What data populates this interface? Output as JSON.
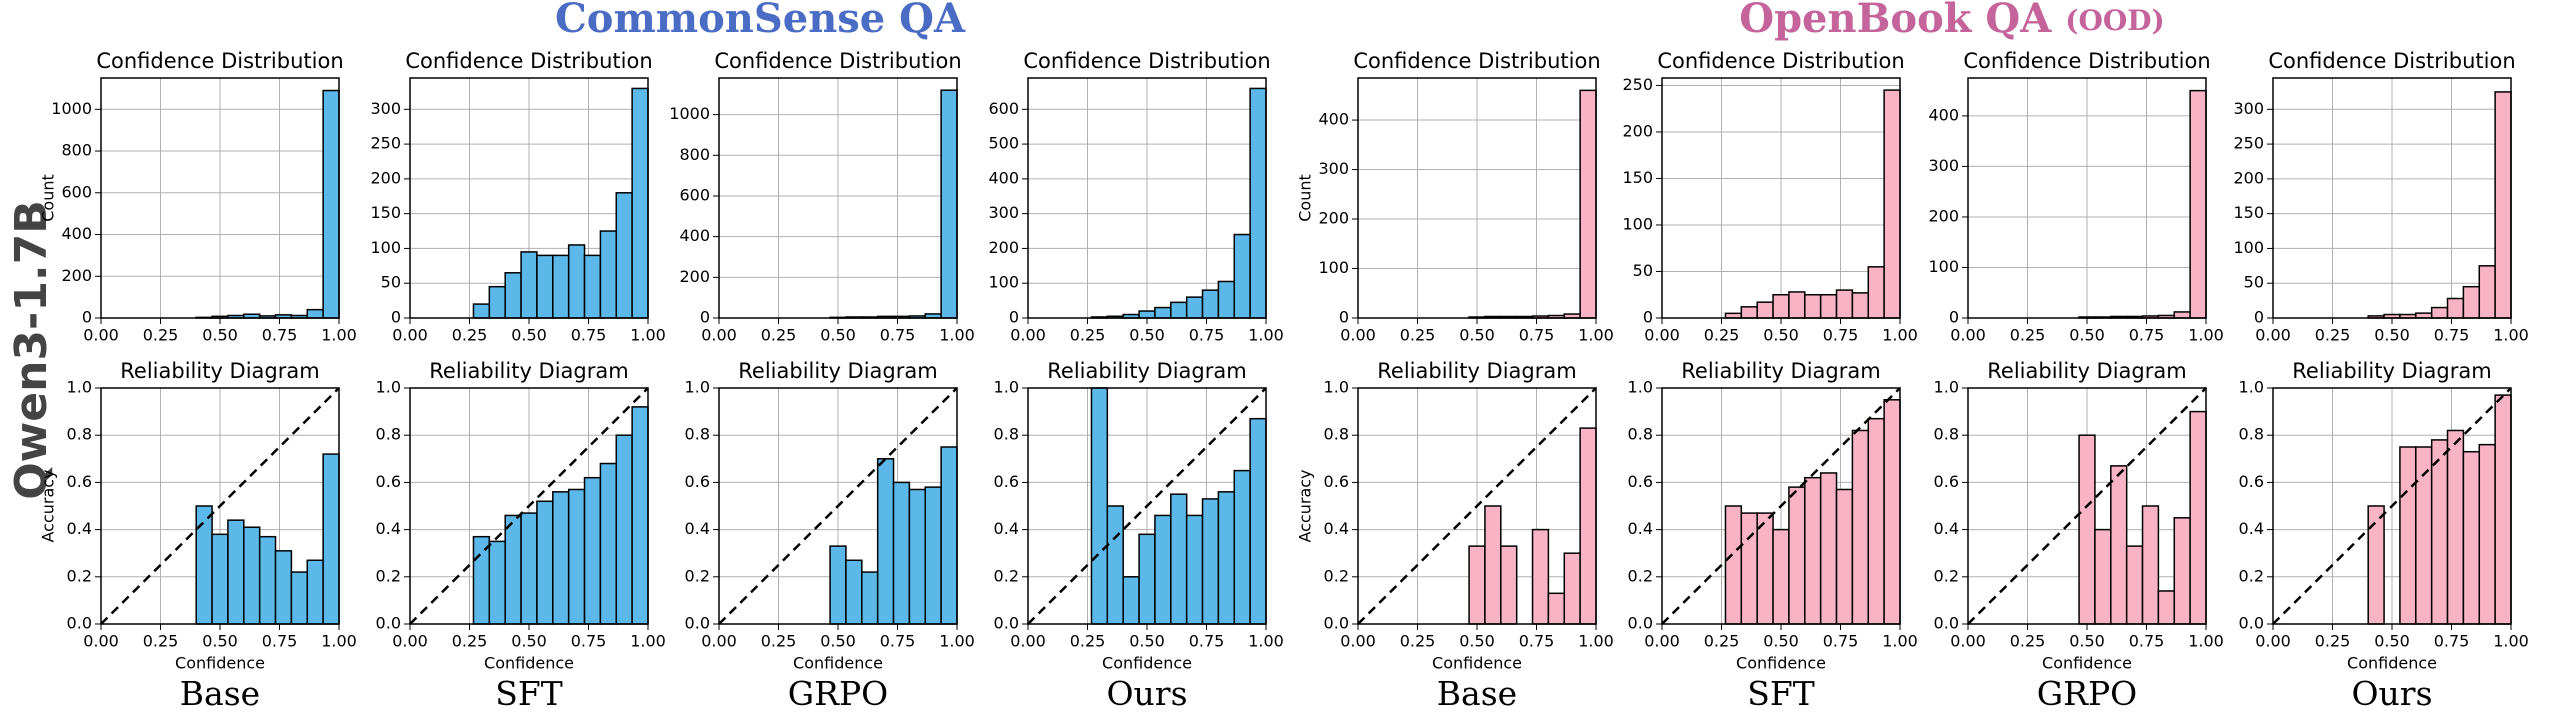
{
  "figure": {
    "row_label": "Qwen3-1.7B",
    "groups": [
      {
        "title": "CommonSense QA"
      },
      {
        "title": "OpenBook QA",
        "note": "(OOD)"
      }
    ],
    "columns": [
      "Base",
      "SFT",
      "GRPO",
      "Ours",
      "Base",
      "SFT",
      "GRPO",
      "Ours"
    ]
  },
  "chart_data": [
    {
      "type": "histogram",
      "title": "Confidence Distribution",
      "ylabel": "Count",
      "color": "#5cb8e8",
      "grid": true,
      "bins": [
        0,
        0.0667,
        0.1333,
        0.2,
        0.2667,
        0.3333,
        0.4,
        0.4667,
        0.5333,
        0.6,
        0.6667,
        0.7333,
        0.8,
        0.8667,
        0.9333,
        1
      ],
      "values": [
        0,
        0,
        0,
        0,
        0,
        0,
        3,
        8,
        12,
        18,
        10,
        15,
        12,
        40,
        1090
      ],
      "xlim": [
        0,
        1
      ],
      "ylim": [
        0,
        1150
      ],
      "xticks": [
        {
          "value": 0,
          "label": "0.00"
        },
        0.25,
        {
          "value": 0.5,
          "label": "0.50"
        },
        0.75,
        {
          "value": 1,
          "label": "1.00"
        }
      ],
      "yticks": [
        0,
        200,
        400,
        600,
        800,
        1000
      ]
    },
    {
      "type": "histogram",
      "title": "Reliability Diagram",
      "xlabel": "Confidence",
      "ylabel": "Accuracy",
      "color": "#5cb8e8",
      "grid": true,
      "diagonal": true,
      "bins": [
        0,
        0.0667,
        0.1333,
        0.2,
        0.2667,
        0.3333,
        0.4,
        0.4667,
        0.5333,
        0.6,
        0.6667,
        0.7333,
        0.8,
        0.8667,
        0.9333,
        1
      ],
      "values": [
        null,
        null,
        null,
        null,
        null,
        null,
        0.5,
        0.38,
        0.44,
        0.41,
        0.37,
        0.31,
        0.22,
        0.27,
        0.72
      ],
      "xlim": [
        0,
        1
      ],
      "ylim": [
        0,
        1
      ],
      "xticks": [
        {
          "value": 0,
          "label": "0.00"
        },
        0.25,
        {
          "value": 0.5,
          "label": "0.50"
        },
        0.75,
        {
          "value": 1,
          "label": "1.00"
        }
      ],
      "yticks": [
        {
          "value": 0,
          "label": "0.0"
        },
        0.2,
        0.4,
        0.6,
        0.8,
        {
          "value": 1,
          "label": "1.0"
        }
      ]
    },
    {
      "type": "histogram",
      "title": "Confidence Distribution",
      "color": "#5cb8e8",
      "grid": true,
      "bins": [
        0,
        0.0667,
        0.1333,
        0.2,
        0.2667,
        0.3333,
        0.4,
        0.4667,
        0.5333,
        0.6,
        0.6667,
        0.7333,
        0.8,
        0.8667,
        0.9333,
        1
      ],
      "values": [
        0,
        0,
        0,
        0,
        20,
        45,
        65,
        95,
        90,
        90,
        105,
        90,
        125,
        180,
        330
      ],
      "xlim": [
        0,
        1
      ],
      "ylim": [
        0,
        345
      ],
      "xticks": [
        {
          "value": 0,
          "label": "0.00"
        },
        0.25,
        {
          "value": 0.5,
          "label": "0.50"
        },
        0.75,
        {
          "value": 1,
          "label": "1.00"
        }
      ],
      "yticks": [
        0,
        50,
        100,
        150,
        200,
        250,
        300
      ]
    },
    {
      "type": "histogram",
      "title": "Reliability Diagram",
      "xlabel": "Confidence",
      "color": "#5cb8e8",
      "grid": true,
      "diagonal": true,
      "bins": [
        0,
        0.0667,
        0.1333,
        0.2,
        0.2667,
        0.3333,
        0.4,
        0.4667,
        0.5333,
        0.6,
        0.6667,
        0.7333,
        0.8,
        0.8667,
        0.9333,
        1
      ],
      "values": [
        null,
        null,
        null,
        null,
        0.37,
        0.35,
        0.46,
        0.47,
        0.52,
        0.56,
        0.57,
        0.62,
        0.68,
        0.8,
        0.92
      ],
      "xlim": [
        0,
        1
      ],
      "ylim": [
        0,
        1
      ],
      "xticks": [
        {
          "value": 0,
          "label": "0.00"
        },
        0.25,
        {
          "value": 0.5,
          "label": "0.50"
        },
        0.75,
        {
          "value": 1,
          "label": "1.00"
        }
      ],
      "yticks": [
        {
          "value": 0,
          "label": "0.0"
        },
        0.2,
        0.4,
        0.6,
        0.8,
        {
          "value": 1,
          "label": "1.0"
        }
      ]
    },
    {
      "type": "histogram",
      "title": "Confidence Distribution",
      "color": "#5cb8e8",
      "grid": true,
      "bins": [
        0,
        0.0667,
        0.1333,
        0.2,
        0.2667,
        0.3333,
        0.4,
        0.4667,
        0.5333,
        0.6,
        0.6667,
        0.7333,
        0.8,
        0.8667,
        0.9333,
        1
      ],
      "values": [
        0,
        0,
        0,
        0,
        0,
        0,
        0,
        3,
        5,
        5,
        8,
        8,
        10,
        20,
        1120
      ],
      "xlim": [
        0,
        1
      ],
      "ylim": [
        0,
        1180
      ],
      "xticks": [
        {
          "value": 0,
          "label": "0.00"
        },
        0.25,
        {
          "value": 0.5,
          "label": "0.50"
        },
        0.75,
        {
          "value": 1,
          "label": "1.00"
        }
      ],
      "yticks": [
        0,
        200,
        400,
        600,
        800,
        1000
      ]
    },
    {
      "type": "histogram",
      "title": "Reliability Diagram",
      "xlabel": "Confidence",
      "color": "#5cb8e8",
      "grid": true,
      "diagonal": true,
      "bins": [
        0,
        0.0667,
        0.1333,
        0.2,
        0.2667,
        0.3333,
        0.4,
        0.4667,
        0.5333,
        0.6,
        0.6667,
        0.7333,
        0.8,
        0.8667,
        0.9333,
        1
      ],
      "values": [
        null,
        null,
        null,
        null,
        null,
        null,
        null,
        0.33,
        0.27,
        0.22,
        0.7,
        0.6,
        0.57,
        0.58,
        0.75
      ],
      "xlim": [
        0,
        1
      ],
      "ylim": [
        0,
        1
      ],
      "xticks": [
        {
          "value": 0,
          "label": "0.00"
        },
        0.25,
        {
          "value": 0.5,
          "label": "0.50"
        },
        0.75,
        {
          "value": 1,
          "label": "1.00"
        }
      ],
      "yticks": [
        {
          "value": 0,
          "label": "0.0"
        },
        0.2,
        0.4,
        0.6,
        0.8,
        {
          "value": 1,
          "label": "1.0"
        }
      ]
    },
    {
      "type": "histogram",
      "title": "Confidence Distribution",
      "color": "#5cb8e8",
      "grid": true,
      "bins": [
        0,
        0.0667,
        0.1333,
        0.2,
        0.2667,
        0.3333,
        0.4,
        0.4667,
        0.5333,
        0.6,
        0.6667,
        0.7333,
        0.8,
        0.8667,
        0.9333,
        1
      ],
      "values": [
        0,
        0,
        0,
        0,
        3,
        5,
        10,
        20,
        30,
        45,
        60,
        80,
        105,
        240,
        660
      ],
      "xlim": [
        0,
        1
      ],
      "ylim": [
        0,
        690
      ],
      "xticks": [
        {
          "value": 0,
          "label": "0.00"
        },
        0.25,
        {
          "value": 0.5,
          "label": "0.50"
        },
        0.75,
        {
          "value": 1,
          "label": "1.00"
        }
      ],
      "yticks": [
        0,
        100,
        200,
        300,
        400,
        500,
        600
      ]
    },
    {
      "type": "histogram",
      "title": "Reliability Diagram",
      "xlabel": "Confidence",
      "color": "#5cb8e8",
      "grid": true,
      "diagonal": true,
      "bins": [
        0,
        0.0667,
        0.1333,
        0.2,
        0.2667,
        0.3333,
        0.4,
        0.4667,
        0.5333,
        0.6,
        0.6667,
        0.7333,
        0.8,
        0.8667,
        0.9333,
        1
      ],
      "values": [
        null,
        null,
        null,
        null,
        1,
        0.5,
        0.2,
        0.38,
        0.46,
        0.55,
        0.46,
        0.53,
        0.56,
        0.65,
        0.87
      ],
      "xlim": [
        0,
        1
      ],
      "ylim": [
        0,
        1
      ],
      "xticks": [
        {
          "value": 0,
          "label": "0.00"
        },
        0.25,
        {
          "value": 0.5,
          "label": "0.50"
        },
        0.75,
        {
          "value": 1,
          "label": "1.00"
        }
      ],
      "yticks": [
        {
          "value": 0,
          "label": "0.0"
        },
        0.2,
        0.4,
        0.6,
        0.8,
        {
          "value": 1,
          "label": "1.0"
        }
      ]
    },
    {
      "type": "histogram",
      "title": "Confidence Distribution",
      "ylabel": "Count",
      "color": "#f8b3c4",
      "grid": true,
      "bins": [
        0,
        0.0667,
        0.1333,
        0.2,
        0.2667,
        0.3333,
        0.4,
        0.4667,
        0.5333,
        0.6,
        0.6667,
        0.7333,
        0.8,
        0.8667,
        0.9333,
        1
      ],
      "values": [
        0,
        0,
        0,
        0,
        0,
        0,
        0,
        2,
        3,
        3,
        3,
        4,
        5,
        8,
        460
      ],
      "xlim": [
        0,
        1
      ],
      "ylim": [
        0,
        485
      ],
      "xticks": [
        {
          "value": 0,
          "label": "0.00"
        },
        0.25,
        {
          "value": 0.5,
          "label": "0.50"
        },
        0.75,
        {
          "value": 1,
          "label": "1.00"
        }
      ],
      "yticks": [
        0,
        100,
        200,
        300,
        400
      ]
    },
    {
      "type": "histogram",
      "title": "Reliability Diagram",
      "xlabel": "Confidence",
      "ylabel": "Accuracy",
      "color": "#f8b3c4",
      "grid": true,
      "diagonal": true,
      "bins": [
        0,
        0.0667,
        0.1333,
        0.2,
        0.2667,
        0.3333,
        0.4,
        0.4667,
        0.5333,
        0.6,
        0.6667,
        0.7333,
        0.8,
        0.8667,
        0.9333,
        1
      ],
      "values": [
        null,
        null,
        null,
        null,
        null,
        null,
        null,
        0.33,
        0.5,
        0.33,
        null,
        0.4,
        0.13,
        0.3,
        0.83
      ],
      "xlim": [
        0,
        1
      ],
      "ylim": [
        0,
        1
      ],
      "xticks": [
        {
          "value": 0,
          "label": "0.00"
        },
        0.25,
        {
          "value": 0.5,
          "label": "0.50"
        },
        0.75,
        {
          "value": 1,
          "label": "1.00"
        }
      ],
      "yticks": [
        {
          "value": 0,
          "label": "0.0"
        },
        0.2,
        0.4,
        0.6,
        0.8,
        {
          "value": 1,
          "label": "1.0"
        }
      ]
    },
    {
      "type": "histogram",
      "title": "Confidence Distribution",
      "color": "#f8b3c4",
      "grid": true,
      "bins": [
        0,
        0.0667,
        0.1333,
        0.2,
        0.2667,
        0.3333,
        0.4,
        0.4667,
        0.5333,
        0.6,
        0.6667,
        0.7333,
        0.8,
        0.8667,
        0.9333,
        1
      ],
      "values": [
        0,
        0,
        0,
        0,
        5,
        12,
        17,
        25,
        28,
        25,
        25,
        30,
        27,
        55,
        245
      ],
      "xlim": [
        0,
        1
      ],
      "ylim": [
        0,
        258
      ],
      "xticks": [
        {
          "value": 0,
          "label": "0.00"
        },
        0.25,
        {
          "value": 0.5,
          "label": "0.50"
        },
        0.75,
        {
          "value": 1,
          "label": "1.00"
        }
      ],
      "yticks": [
        0,
        50,
        100,
        150,
        200,
        250
      ]
    },
    {
      "type": "histogram",
      "title": "Reliability Diagram",
      "xlabel": "Confidence",
      "color": "#f8b3c4",
      "grid": true,
      "diagonal": true,
      "bins": [
        0,
        0.0667,
        0.1333,
        0.2,
        0.2667,
        0.3333,
        0.4,
        0.4667,
        0.5333,
        0.6,
        0.6667,
        0.7333,
        0.8,
        0.8667,
        0.9333,
        1
      ],
      "values": [
        null,
        null,
        null,
        null,
        0.5,
        0.47,
        0.47,
        0.4,
        0.58,
        0.62,
        0.64,
        0.57,
        0.82,
        0.87,
        0.95
      ],
      "xlim": [
        0,
        1
      ],
      "ylim": [
        0,
        1
      ],
      "xticks": [
        {
          "value": 0,
          "label": "0.00"
        },
        0.25,
        {
          "value": 0.5,
          "label": "0.50"
        },
        0.75,
        {
          "value": 1,
          "label": "1.00"
        }
      ],
      "yticks": [
        {
          "value": 0,
          "label": "0.0"
        },
        0.2,
        0.4,
        0.6,
        0.8,
        {
          "value": 1,
          "label": "1.0"
        }
      ]
    },
    {
      "type": "histogram",
      "title": "Confidence Distribution",
      "color": "#f8b3c4",
      "grid": true,
      "bins": [
        0,
        0.0667,
        0.1333,
        0.2,
        0.2667,
        0.3333,
        0.4,
        0.4667,
        0.5333,
        0.6,
        0.6667,
        0.7333,
        0.8,
        0.8667,
        0.9333,
        1
      ],
      "values": [
        0,
        0,
        0,
        0,
        0,
        0,
        0,
        2,
        2,
        3,
        3,
        4,
        5,
        12,
        450
      ],
      "xlim": [
        0,
        1
      ],
      "ylim": [
        0,
        475
      ],
      "xticks": [
        {
          "value": 0,
          "label": "0.00"
        },
        0.25,
        {
          "value": 0.5,
          "label": "0.50"
        },
        0.75,
        {
          "value": 1,
          "label": "1.00"
        }
      ],
      "yticks": [
        0,
        100,
        200,
        300,
        400
      ]
    },
    {
      "type": "histogram",
      "title": "Reliability Diagram",
      "xlabel": "Confidence",
      "color": "#f8b3c4",
      "grid": true,
      "diagonal": true,
      "bins": [
        0,
        0.0667,
        0.1333,
        0.2,
        0.2667,
        0.3333,
        0.4,
        0.4667,
        0.5333,
        0.6,
        0.6667,
        0.7333,
        0.8,
        0.8667,
        0.9333,
        1
      ],
      "values": [
        null,
        null,
        null,
        null,
        null,
        null,
        null,
        0.8,
        0.4,
        0.67,
        0.33,
        0.5,
        0.14,
        0.45,
        0.9
      ],
      "xlim": [
        0,
        1
      ],
      "ylim": [
        0,
        1
      ],
      "xticks": [
        {
          "value": 0,
          "label": "0.00"
        },
        0.25,
        {
          "value": 0.5,
          "label": "0.50"
        },
        0.75,
        {
          "value": 1,
          "label": "1.00"
        }
      ],
      "yticks": [
        {
          "value": 0,
          "label": "0.0"
        },
        0.2,
        0.4,
        0.6,
        0.8,
        {
          "value": 1,
          "label": "1.0"
        }
      ]
    },
    {
      "type": "histogram",
      "title": "Confidence Distribution",
      "color": "#f8b3c4",
      "grid": true,
      "bins": [
        0,
        0.0667,
        0.1333,
        0.2,
        0.2667,
        0.3333,
        0.4,
        0.4667,
        0.5333,
        0.6,
        0.6667,
        0.7333,
        0.8,
        0.8667,
        0.9333,
        1
      ],
      "values": [
        0,
        0,
        0,
        0,
        0,
        0,
        3,
        5,
        5,
        7,
        15,
        28,
        45,
        75,
        325
      ],
      "xlim": [
        0,
        1
      ],
      "ylim": [
        0,
        345
      ],
      "xticks": [
        {
          "value": 0,
          "label": "0.00"
        },
        0.25,
        {
          "value": 0.5,
          "label": "0.50"
        },
        0.75,
        {
          "value": 1,
          "label": "1.00"
        }
      ],
      "yticks": [
        0,
        50,
        100,
        150,
        200,
        250,
        300
      ]
    },
    {
      "type": "histogram",
      "title": "Reliability Diagram",
      "xlabel": "Confidence",
      "color": "#f8b3c4",
      "grid": true,
      "diagonal": true,
      "bins": [
        0,
        0.0667,
        0.1333,
        0.2,
        0.2667,
        0.3333,
        0.4,
        0.4667,
        0.5333,
        0.6,
        0.6667,
        0.7333,
        0.8,
        0.8667,
        0.9333,
        1
      ],
      "values": [
        null,
        null,
        null,
        null,
        null,
        null,
        0.5,
        null,
        0.75,
        0.75,
        0.78,
        0.82,
        0.73,
        0.76,
        0.97
      ],
      "xlim": [
        0,
        1
      ],
      "ylim": [
        0,
        1
      ],
      "xticks": [
        {
          "value": 0,
          "label": "0.00"
        },
        0.25,
        {
          "value": 0.5,
          "label": "0.50"
        },
        0.75,
        {
          "value": 1,
          "label": "1.00"
        }
      ],
      "yticks": [
        {
          "value": 0,
          "label": "0.0"
        },
        0.2,
        0.4,
        0.6,
        0.8,
        {
          "value": 1,
          "label": "1.0"
        }
      ]
    }
  ]
}
